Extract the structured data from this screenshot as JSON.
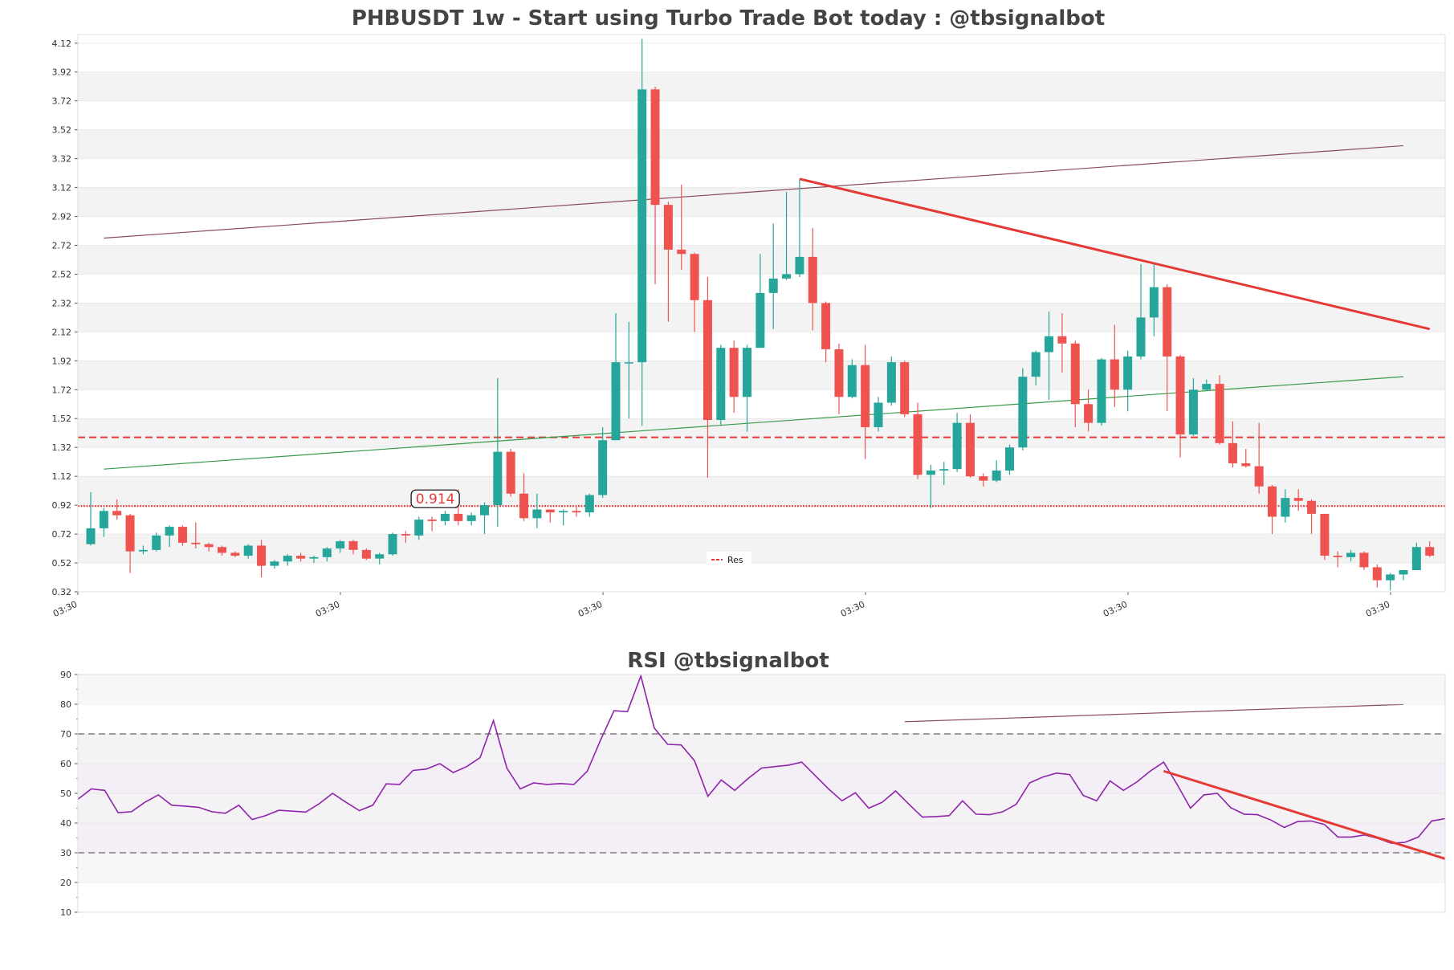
{
  "colors": {
    "up": "#26a69a",
    "down": "#ef5350",
    "resistance": "#e53935",
    "channel": "#8b4a5a",
    "support_trend": "#3a9a4a",
    "rsi_line": "#8e24aa",
    "band_fill": "#f3f3f3",
    "grid": "#e0e0e0"
  },
  "chart_data": [
    {
      "type": "candlestick",
      "title": "PHBUSDT 1w - Start using Turbo Trade Bot today : @tbsignalbot",
      "ylim": [
        0.32,
        4.18
      ],
      "yticks": [
        "0.32",
        "0.52",
        "0.72",
        "0.92",
        "1.12",
        "1.32",
        "1.52",
        "1.72",
        "1.92",
        "2.12",
        "2.32",
        "2.52",
        "2.72",
        "2.92",
        "3.12",
        "3.32",
        "3.52",
        "3.72",
        "3.92",
        "4.12"
      ],
      "x_tick_labels": [
        "03:30",
        "03:30",
        "03:30",
        "03:30",
        "03:30",
        "03:30"
      ],
      "x_tick_candle_index": [
        0,
        20,
        40,
        60,
        80,
        100
      ],
      "candles": [
        [
          0.65,
          0.76,
          0.64,
          1.01
        ],
        [
          0.76,
          0.88,
          0.7,
          0.9
        ],
        [
          0.88,
          0.85,
          0.82,
          0.96
        ],
        [
          0.85,
          0.6,
          0.45,
          0.86
        ],
        [
          0.6,
          0.61,
          0.58,
          0.64
        ],
        [
          0.61,
          0.71,
          0.6,
          0.73
        ],
        [
          0.71,
          0.77,
          0.63,
          0.78
        ],
        [
          0.77,
          0.66,
          0.64,
          0.78
        ],
        [
          0.66,
          0.65,
          0.62,
          0.8
        ],
        [
          0.65,
          0.63,
          0.6,
          0.66
        ],
        [
          0.63,
          0.59,
          0.57,
          0.64
        ],
        [
          0.59,
          0.57,
          0.56,
          0.6
        ],
        [
          0.57,
          0.64,
          0.55,
          0.65
        ],
        [
          0.64,
          0.5,
          0.42,
          0.68
        ],
        [
          0.5,
          0.53,
          0.48,
          0.54
        ],
        [
          0.53,
          0.57,
          0.5,
          0.58
        ],
        [
          0.57,
          0.55,
          0.53,
          0.59
        ],
        [
          0.55,
          0.56,
          0.52,
          0.57
        ],
        [
          0.56,
          0.62,
          0.53,
          0.63
        ],
        [
          0.62,
          0.67,
          0.59,
          0.68
        ],
        [
          0.67,
          0.61,
          0.58,
          0.68
        ],
        [
          0.61,
          0.55,
          0.54,
          0.62
        ],
        [
          0.55,
          0.58,
          0.51,
          0.59
        ],
        [
          0.58,
          0.72,
          0.57,
          0.73
        ],
        [
          0.72,
          0.71,
          0.66,
          0.74
        ],
        [
          0.71,
          0.82,
          0.68,
          0.84
        ],
        [
          0.82,
          0.81,
          0.74,
          0.84
        ],
        [
          0.81,
          0.86,
          0.78,
          0.88
        ],
        [
          0.86,
          0.81,
          0.78,
          1.03
        ],
        [
          0.81,
          0.85,
          0.78,
          0.87
        ],
        [
          0.85,
          0.92,
          0.72,
          0.94
        ],
        [
          0.92,
          1.29,
          0.77,
          1.8
        ],
        [
          1.29,
          1.0,
          0.98,
          1.31
        ],
        [
          1.0,
          0.83,
          0.81,
          1.14
        ],
        [
          0.83,
          0.89,
          0.76,
          1.0
        ],
        [
          0.89,
          0.87,
          0.8,
          0.89
        ],
        [
          0.87,
          0.88,
          0.78,
          0.89
        ],
        [
          0.88,
          0.87,
          0.84,
          0.92
        ],
        [
          0.87,
          0.99,
          0.84,
          1.0
        ],
        [
          0.99,
          1.37,
          0.97,
          1.46
        ],
        [
          1.37,
          1.91,
          1.37,
          2.25
        ],
        [
          1.91,
          1.91,
          1.52,
          2.19
        ],
        [
          1.91,
          3.8,
          1.47,
          4.15
        ],
        [
          3.8,
          3.0,
          2.45,
          3.82
        ],
        [
          3.0,
          2.69,
          2.19,
          3.02
        ],
        [
          2.69,
          2.66,
          2.55,
          3.14
        ],
        [
          2.66,
          2.34,
          2.12,
          2.67
        ],
        [
          2.34,
          1.51,
          1.11,
          2.5
        ],
        [
          1.51,
          2.01,
          1.47,
          2.03
        ],
        [
          2.01,
          1.67,
          1.56,
          2.06
        ],
        [
          1.67,
          2.01,
          1.43,
          2.03
        ],
        [
          2.01,
          2.39,
          2.01,
          2.66
        ],
        [
          2.39,
          2.49,
          2.14,
          2.87
        ],
        [
          2.49,
          2.52,
          2.48,
          3.09
        ],
        [
          2.52,
          2.64,
          2.5,
          3.18
        ],
        [
          2.64,
          2.32,
          2.13,
          2.84
        ],
        [
          2.32,
          2.0,
          1.91,
          2.33
        ],
        [
          2.0,
          1.67,
          1.55,
          2.04
        ],
        [
          1.67,
          1.89,
          1.66,
          1.93
        ],
        [
          1.89,
          1.46,
          1.24,
          2.03
        ],
        [
          1.46,
          1.63,
          1.43,
          1.67
        ],
        [
          1.63,
          1.91,
          1.61,
          1.95
        ],
        [
          1.91,
          1.55,
          1.53,
          1.92
        ],
        [
          1.55,
          1.13,
          1.1,
          1.63
        ],
        [
          1.13,
          1.16,
          0.9,
          1.2
        ],
        [
          1.16,
          1.17,
          1.06,
          1.22
        ],
        [
          1.17,
          1.49,
          1.15,
          1.56
        ],
        [
          1.49,
          1.12,
          1.11,
          1.55
        ],
        [
          1.12,
          1.09,
          1.05,
          1.14
        ],
        [
          1.09,
          1.16,
          1.08,
          1.23
        ],
        [
          1.16,
          1.32,
          1.13,
          1.34
        ],
        [
          1.32,
          1.81,
          1.3,
          1.87
        ],
        [
          1.81,
          1.98,
          1.75,
          1.99
        ],
        [
          1.98,
          2.09,
          1.65,
          2.26
        ],
        [
          2.09,
          2.04,
          1.84,
          2.25
        ],
        [
          2.04,
          1.62,
          1.46,
          2.06
        ],
        [
          1.62,
          1.49,
          1.43,
          1.72
        ],
        [
          1.49,
          1.93,
          1.47,
          1.94
        ],
        [
          1.93,
          1.72,
          1.6,
          2.17
        ],
        [
          1.72,
          1.95,
          1.57,
          1.99
        ],
        [
          1.95,
          2.22,
          1.93,
          2.59
        ],
        [
          2.22,
          2.43,
          2.09,
          2.59
        ],
        [
          2.43,
          1.95,
          1.57,
          2.45
        ],
        [
          1.95,
          1.41,
          1.25,
          1.96
        ],
        [
          1.41,
          1.72,
          1.4,
          1.8
        ],
        [
          1.72,
          1.76,
          1.71,
          1.79
        ],
        [
          1.76,
          1.35,
          1.34,
          1.82
        ],
        [
          1.35,
          1.21,
          1.18,
          1.5
        ],
        [
          1.21,
          1.19,
          1.18,
          1.31
        ],
        [
          1.19,
          1.05,
          1.0,
          1.49
        ],
        [
          1.05,
          0.84,
          0.72,
          1.06
        ],
        [
          0.84,
          0.97,
          0.8,
          1.03
        ],
        [
          0.97,
          0.95,
          0.88,
          1.03
        ],
        [
          0.95,
          0.86,
          0.72,
          0.96
        ],
        [
          0.86,
          0.57,
          0.54,
          0.86
        ],
        [
          0.57,
          0.56,
          0.49,
          0.6
        ],
        [
          0.56,
          0.59,
          0.53,
          0.61
        ],
        [
          0.59,
          0.49,
          0.47,
          0.6
        ],
        [
          0.49,
          0.4,
          0.35,
          0.51
        ],
        [
          0.4,
          0.44,
          0.33,
          0.45
        ],
        [
          0.44,
          0.47,
          0.4,
          0.47
        ],
        [
          0.47,
          0.63,
          0.47,
          0.66
        ],
        [
          0.63,
          0.57,
          0.56,
          0.67
        ]
      ],
      "horizontal_lines": [
        {
          "value": 1.39,
          "style": "dashed",
          "color": "#e53935"
        },
        {
          "value": 0.914,
          "style": "dotted",
          "color": "#e53935"
        }
      ],
      "price_label": "0.914",
      "price_label_value": 0.914,
      "price_label_candle_index": 26,
      "trend_lines": [
        {
          "from": [
            1,
            2.77
          ],
          "to": [
            100,
            3.41
          ],
          "color": "#8b4a5a"
        },
        {
          "from": [
            1,
            1.17
          ],
          "to": [
            100,
            1.81
          ],
          "color": "#3a9a4a"
        },
        {
          "from": [
            54,
            3.18
          ],
          "to": [
            102,
            2.14
          ],
          "color": "#e53935",
          "bold": true
        },
        {
          "from": [
            62,
            -0.58
          ],
          "to": [
            100,
            -0.46
          ],
          "color": "#8b4a5a"
        }
      ],
      "legend": {
        "placement": "bottom-center",
        "entries": [
          "Res"
        ]
      }
    },
    {
      "type": "line",
      "title": "RSI @tbsignalbot",
      "ylim": [
        10,
        90
      ],
      "yticks": [
        "10",
        "20",
        "30",
        "40",
        "50",
        "60",
        "70",
        "80",
        "90"
      ],
      "overbought": 70,
      "oversold": 30,
      "values": [
        48,
        51.5,
        51,
        43.5,
        43.8,
        47,
        49.5,
        46,
        45.7,
        45.3,
        43.8,
        43.3,
        46,
        41.2,
        42.5,
        44.3,
        44,
        43.7,
        46.5,
        50,
        47,
        44.2,
        46,
        53.2,
        53,
        57.7,
        58.2,
        60,
        57,
        59,
        62,
        74.5,
        58.5,
        51.5,
        53.5,
        53,
        53.3,
        53,
        57.5,
        68,
        77.8,
        77.5,
        89.5,
        72,
        66.5,
        66.3,
        61,
        49,
        54.5,
        51,
        55,
        58.5,
        59,
        59.5,
        60.5,
        56,
        51.5,
        47.5,
        50.2,
        45,
        47,
        50.8,
        46.3,
        42,
        42.2,
        42.5,
        47.5,
        43,
        42.8,
        43.8,
        46.3,
        53.5,
        55.5,
        56.8,
        56.3,
        49.3,
        47.5,
        54.2,
        51,
        53.8,
        57.5,
        60.5,
        53,
        45,
        49.5,
        50,
        45.2,
        43,
        42.8,
        41,
        38.5,
        40.5,
        40.7,
        39.5,
        35.3,
        35.3,
        36,
        34.8,
        33.2,
        33.5,
        35.3,
        40.7,
        41.5
      ],
      "trend_line": {
        "from": [
          81,
          57.5
        ],
        "to": [
          102,
          28
        ],
        "color": "#e53935"
      }
    }
  ]
}
